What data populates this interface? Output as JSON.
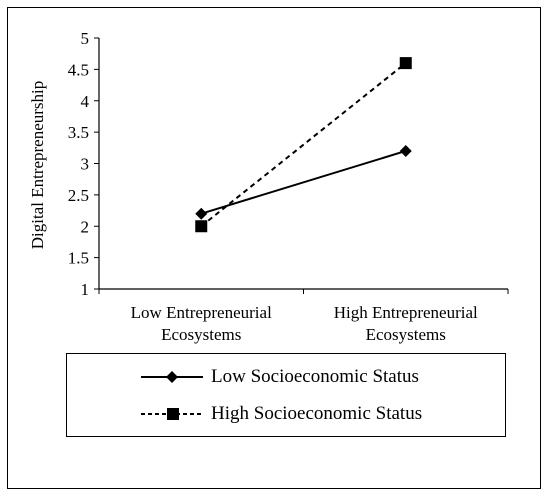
{
  "chart_data": {
    "type": "line",
    "categories": [
      "Low Entrepreneurial Ecosystems",
      "High Entrepreneurial Ecosystems"
    ],
    "category_labels": [
      [
        "Low Entrepreneurial",
        "Ecosystems"
      ],
      [
        "High Entrepreneurial",
        "Ecosystems"
      ]
    ],
    "series": [
      {
        "name": "Low Socioeconomic Status",
        "values": [
          2.2,
          3.2
        ],
        "marker": "diamond",
        "line_style": "solid",
        "color": "#000000"
      },
      {
        "name": "High Socioeconomic Status",
        "values": [
          2.0,
          4.6
        ],
        "marker": "square",
        "line_style": "dashed",
        "color": "#000000"
      }
    ],
    "title": "",
    "xlabel": "",
    "ylabel": "Digital Entrepreneurship",
    "ylim": [
      1,
      5
    ],
    "yticks": [
      "1",
      "1.5",
      "2",
      "2.5",
      "3",
      "3.5",
      "4",
      "4.5",
      "5"
    ],
    "grid": false,
    "legend_position": "bottom"
  }
}
